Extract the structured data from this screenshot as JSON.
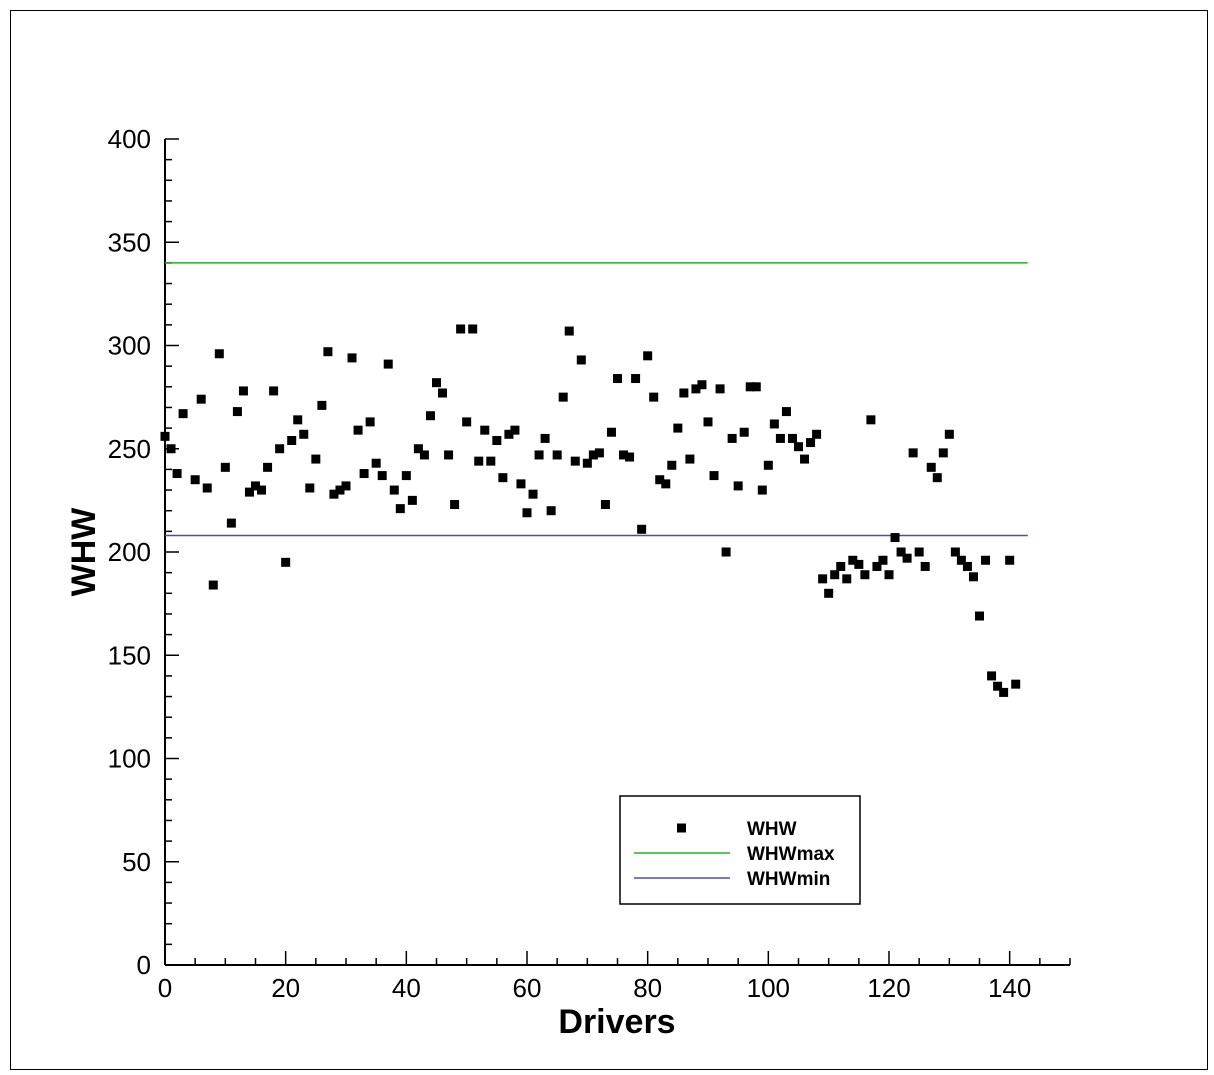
{
  "chart_data": {
    "type": "scatter",
    "title": "",
    "xlabel": "Drivers",
    "ylabel": "WHW",
    "xlim": [
      0,
      150
    ],
    "ylim": [
      0,
      400
    ],
    "xticks": [
      "0",
      "20",
      "40",
      "60",
      "80",
      "100",
      "120",
      "140"
    ],
    "yticks": [
      "0",
      "50",
      "100",
      "150",
      "200",
      "250",
      "300",
      "350",
      "400"
    ],
    "grid": false,
    "legend_position": "bottom-center",
    "legend": [
      {
        "name": "WHW",
        "kind": "marker",
        "color": "#000000"
      },
      {
        "name": "WHWmax",
        "kind": "line",
        "color": "#22b422"
      },
      {
        "name": "WHWmin",
        "kind": "line",
        "color": "#4b4bb4"
      }
    ],
    "lines": [
      {
        "name": "WHWmax",
        "y": 340,
        "x": [
          0,
          143
        ],
        "color": "#22b422"
      },
      {
        "name": "WHWmin",
        "y": 208,
        "x": [
          0,
          143
        ],
        "color": "#4b4bb4"
      }
    ],
    "series": [
      {
        "name": "WHW",
        "color": "#000000",
        "points": [
          [
            0,
            256
          ],
          [
            1,
            250
          ],
          [
            2,
            238
          ],
          [
            3,
            267
          ],
          [
            5,
            235
          ],
          [
            6,
            274
          ],
          [
            7,
            231
          ],
          [
            8,
            184
          ],
          [
            9,
            296
          ],
          [
            10,
            241
          ],
          [
            11,
            214
          ],
          [
            12,
            268
          ],
          [
            13,
            278
          ],
          [
            14,
            229
          ],
          [
            15,
            232
          ],
          [
            16,
            230
          ],
          [
            17,
            241
          ],
          [
            18,
            278
          ],
          [
            19,
            250
          ],
          [
            20,
            195
          ],
          [
            21,
            254
          ],
          [
            22,
            264
          ],
          [
            23,
            257
          ],
          [
            24,
            231
          ],
          [
            25,
            245
          ],
          [
            26,
            271
          ],
          [
            27,
            297
          ],
          [
            28,
            228
          ],
          [
            29,
            230
          ],
          [
            30,
            232
          ],
          [
            31,
            294
          ],
          [
            32,
            259
          ],
          [
            33,
            238
          ],
          [
            34,
            263
          ],
          [
            35,
            243
          ],
          [
            36,
            237
          ],
          [
            37,
            291
          ],
          [
            38,
            230
          ],
          [
            39,
            221
          ],
          [
            40,
            237
          ],
          [
            41,
            225
          ],
          [
            42,
            250
          ],
          [
            43,
            247
          ],
          [
            44,
            266
          ],
          [
            45,
            282
          ],
          [
            46,
            277
          ],
          [
            47,
            247
          ],
          [
            48,
            223
          ],
          [
            49,
            308
          ],
          [
            50,
            263
          ],
          [
            51,
            308
          ],
          [
            52,
            244
          ],
          [
            53,
            259
          ],
          [
            54,
            244
          ],
          [
            55,
            254
          ],
          [
            56,
            236
          ],
          [
            57,
            257
          ],
          [
            58,
            259
          ],
          [
            59,
            233
          ],
          [
            60,
            219
          ],
          [
            61,
            228
          ],
          [
            62,
            247
          ],
          [
            63,
            255
          ],
          [
            64,
            220
          ],
          [
            65,
            247
          ],
          [
            66,
            275
          ],
          [
            67,
            307
          ],
          [
            68,
            244
          ],
          [
            69,
            293
          ],
          [
            70,
            243
          ],
          [
            71,
            247
          ],
          [
            72,
            248
          ],
          [
            73,
            223
          ],
          [
            74,
            258
          ],
          [
            75,
            284
          ],
          [
            76,
            247
          ],
          [
            77,
            246
          ],
          [
            78,
            284
          ],
          [
            79,
            211
          ],
          [
            80,
            295
          ],
          [
            81,
            275
          ],
          [
            82,
            235
          ],
          [
            83,
            233
          ],
          [
            84,
            242
          ],
          [
            85,
            260
          ],
          [
            86,
            277
          ],
          [
            87,
            245
          ],
          [
            88,
            279
          ],
          [
            89,
            281
          ],
          [
            90,
            263
          ],
          [
            91,
            237
          ],
          [
            92,
            279
          ],
          [
            93,
            200
          ],
          [
            94,
            255
          ],
          [
            95,
            232
          ],
          [
            96,
            258
          ],
          [
            97,
            280
          ],
          [
            98,
            280
          ],
          [
            99,
            230
          ],
          [
            100,
            242
          ],
          [
            101,
            262
          ],
          [
            102,
            255
          ],
          [
            103,
            268
          ],
          [
            104,
            255
          ],
          [
            105,
            251
          ],
          [
            106,
            245
          ],
          [
            107,
            253
          ],
          [
            108,
            257
          ],
          [
            109,
            187
          ],
          [
            110,
            180
          ],
          [
            111,
            189
          ],
          [
            112,
            193
          ],
          [
            113,
            187
          ],
          [
            114,
            196
          ],
          [
            115,
            194
          ],
          [
            116,
            189
          ],
          [
            117,
            264
          ],
          [
            118,
            193
          ],
          [
            119,
            196
          ],
          [
            120,
            189
          ],
          [
            121,
            207
          ],
          [
            122,
            200
          ],
          [
            123,
            197
          ],
          [
            124,
            248
          ],
          [
            125,
            200
          ],
          [
            126,
            193
          ],
          [
            127,
            241
          ],
          [
            128,
            236
          ],
          [
            129,
            248
          ],
          [
            130,
            257
          ],
          [
            131,
            200
          ],
          [
            132,
            196
          ],
          [
            133,
            193
          ],
          [
            134,
            188
          ],
          [
            135,
            169
          ],
          [
            136,
            196
          ],
          [
            137,
            140
          ],
          [
            138,
            135
          ],
          [
            139,
            132
          ],
          [
            140,
            196
          ],
          [
            141,
            136
          ]
        ]
      }
    ]
  }
}
